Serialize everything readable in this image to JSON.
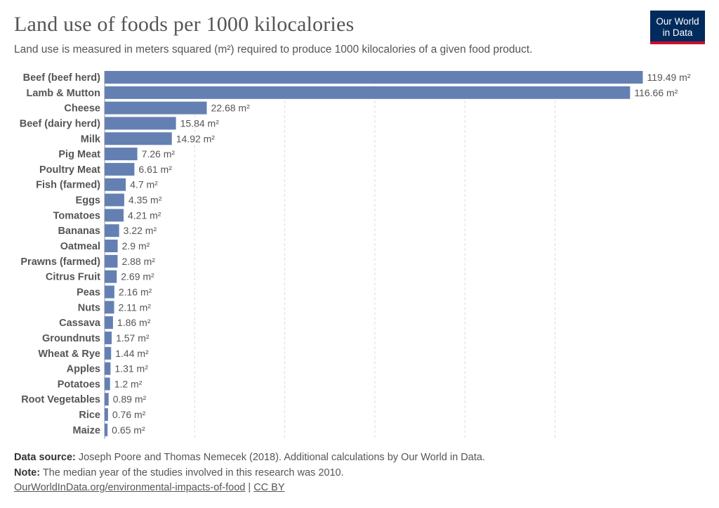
{
  "header": {
    "title": "Land use of foods per 1000 kilocalories",
    "subtitle": "Land use is measured in meters squared (m²) required to produce 1000 kilocalories of a given food product.",
    "logo_line1": "Our World",
    "logo_line2": "in Data"
  },
  "footer": {
    "source_label": "Data source:",
    "source_text": " Joseph Poore and Thomas Nemecek (2018). Additional calculations by Our World in Data.",
    "note_label": "Note:",
    "note_text": " The median year of the studies involved in this research was 2010.",
    "link_text": "OurWorldInData.org/environmental-impacts-of-food",
    "separator": " | ",
    "license_text": "CC BY"
  },
  "colors": {
    "bar": "#6480b3",
    "grid": "#dddddd",
    "logo_bg": "#002b5c",
    "logo_accent": "#c8102e"
  },
  "chart_data": {
    "type": "bar",
    "orientation": "horizontal",
    "unit_suffix": " m²",
    "xlim": [
      0,
      120
    ],
    "gridlines": [
      0,
      20,
      40,
      60,
      80,
      100
    ],
    "grid": true,
    "categories": [
      "Beef (beef herd)",
      "Lamb & Mutton",
      "Cheese",
      "Beef (dairy herd)",
      "Milk",
      "Pig Meat",
      "Poultry Meat",
      "Fish (farmed)",
      "Eggs",
      "Tomatoes",
      "Bananas",
      "Oatmeal",
      "Prawns (farmed)",
      "Citrus Fruit",
      "Peas",
      "Nuts",
      "Cassava",
      "Groundnuts",
      "Wheat & Rye",
      "Apples",
      "Potatoes",
      "Root Vegetables",
      "Rice",
      "Maize"
    ],
    "values": [
      119.49,
      116.66,
      22.68,
      15.84,
      14.92,
      7.26,
      6.61,
      4.7,
      4.35,
      4.21,
      3.22,
      2.9,
      2.88,
      2.69,
      2.16,
      2.11,
      1.86,
      1.57,
      1.44,
      1.31,
      1.2,
      0.89,
      0.76,
      0.65
    ]
  }
}
